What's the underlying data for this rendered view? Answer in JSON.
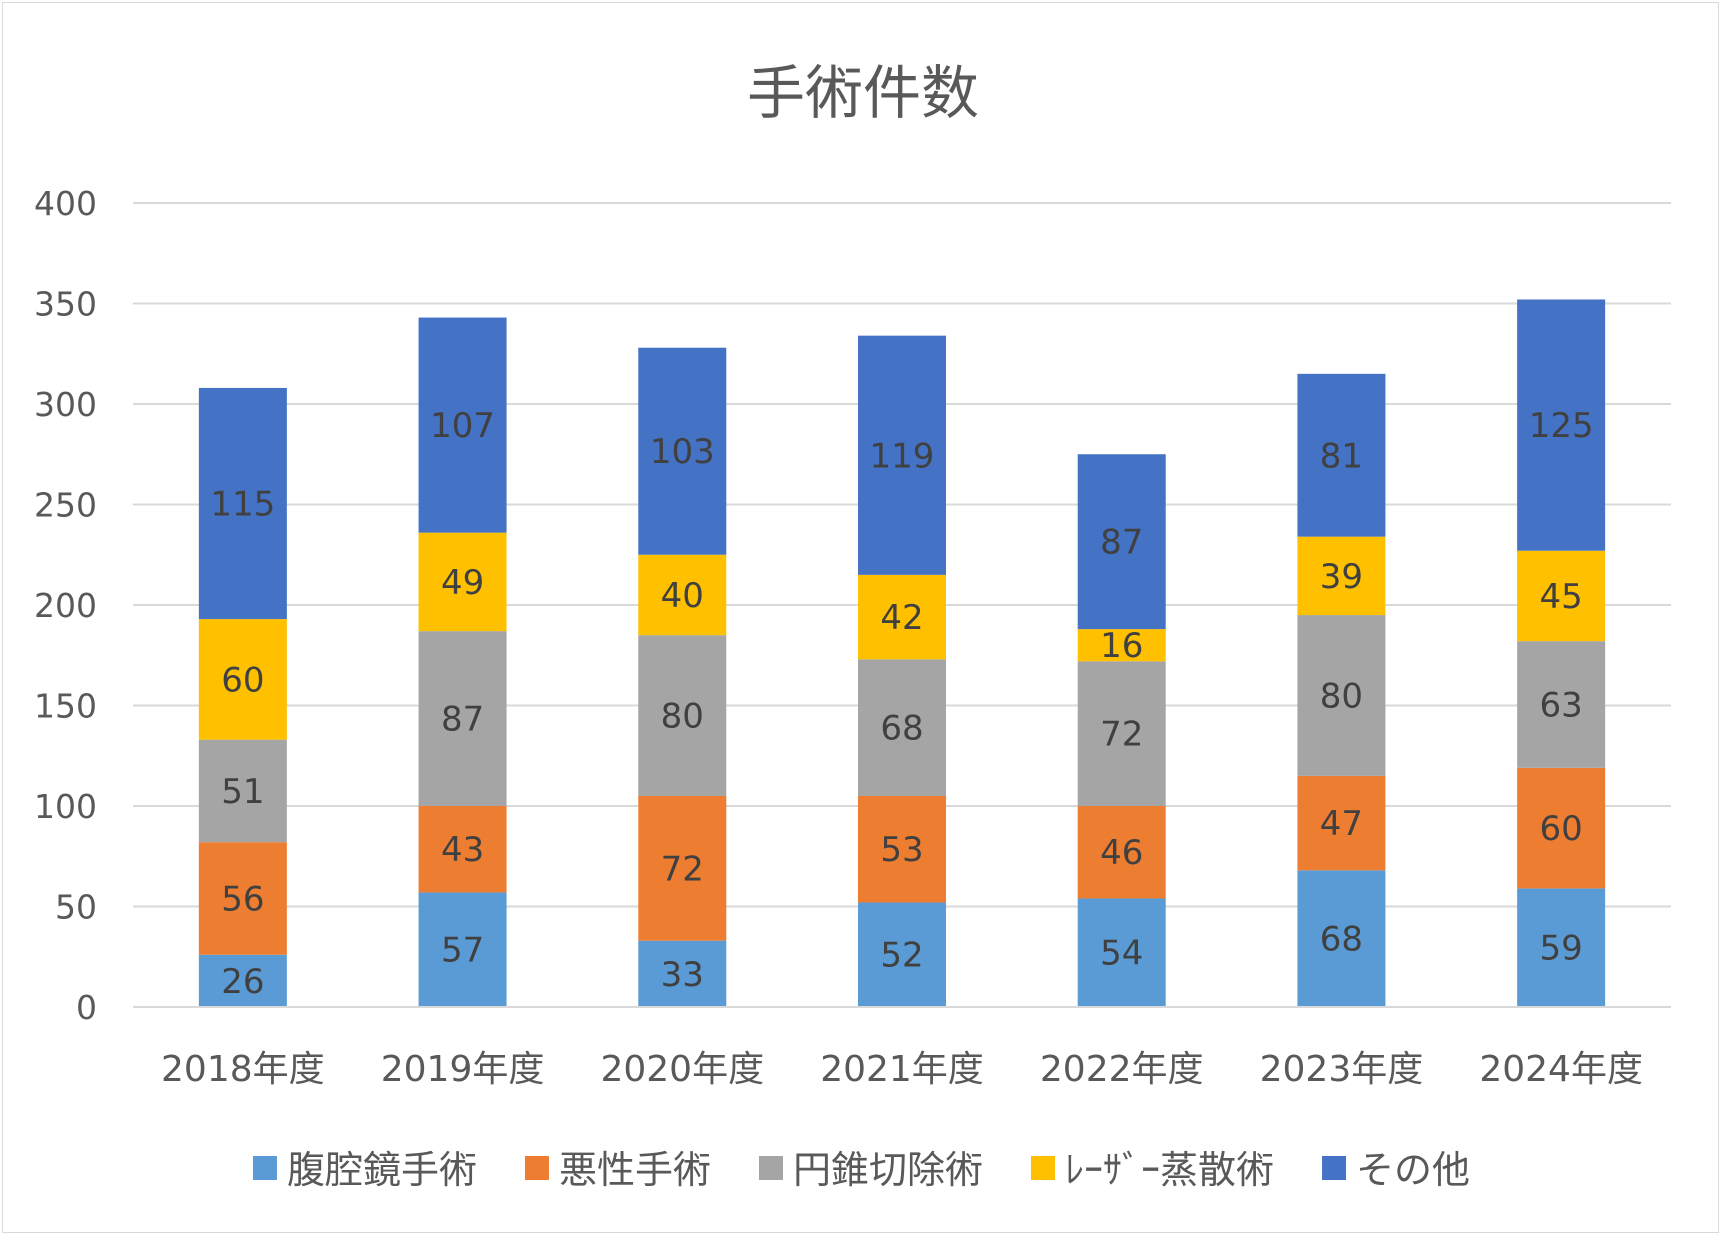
{
  "chart_data": {
    "type": "bar",
    "stacked": true,
    "title": "手術件数",
    "xlabel": "",
    "ylabel": "",
    "categories": [
      "2018年度",
      "2019年度",
      "2020年度",
      "2021年度",
      "2022年度",
      "2023年度",
      "2024年度"
    ],
    "ylim": [
      0,
      400
    ],
    "yticks": [
      0,
      50,
      100,
      150,
      200,
      250,
      300,
      350,
      400
    ],
    "grid": true,
    "legend_position": "bottom",
    "data_labels": true,
    "series": [
      {
        "name": "腹腔鏡手術",
        "color": "#5b9bd5",
        "values": [
          26,
          57,
          33,
          52,
          54,
          68,
          59
        ]
      },
      {
        "name": "悪性手術",
        "color": "#ed7d31",
        "values": [
          56,
          43,
          72,
          53,
          46,
          47,
          60
        ]
      },
      {
        "name": "円錐切除術",
        "color": "#a5a5a5",
        "values": [
          51,
          87,
          80,
          68,
          72,
          80,
          63
        ]
      },
      {
        "name": "ﾚｰｻﾞｰ蒸散術",
        "color": "#ffc000",
        "values": [
          60,
          49,
          40,
          42,
          16,
          39,
          45
        ]
      },
      {
        "name": "その他",
        "color": "#4472c4",
        "values": [
          115,
          107,
          103,
          119,
          87,
          81,
          125
        ]
      }
    ]
  }
}
